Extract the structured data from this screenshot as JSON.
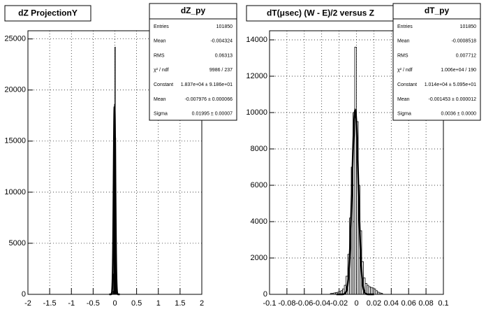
{
  "chart_data": [
    {
      "type": "histogram",
      "title": "dZ ProjectionY",
      "stats": {
        "title": "dZ_py",
        "rows": [
          {
            "label": "Entries",
            "value": "101850"
          },
          {
            "label": "Mean",
            "value": "-0.004324"
          },
          {
            "label": "RMS",
            "value": "0.06313"
          },
          {
            "label": "χ² / ndf",
            "value": "9986 / 237"
          },
          {
            "label": "Constant",
            "value": "1.837e+04 ± 9.186e+01"
          },
          {
            "label": "Mean",
            "value": "-0.007976 ± 0.000066"
          },
          {
            "label": "Sigma",
            "value": "0.01995 ± 0.00007"
          }
        ]
      },
      "fit": {
        "constant": 18370,
        "mean": -0.007976,
        "sigma": 0.01995
      },
      "bins": [
        -0.1,
        -0.09,
        -0.08,
        -0.07,
        -0.06,
        -0.05,
        -0.04,
        -0.03,
        -0.02,
        -0.01,
        0,
        0.01,
        0.02,
        0.03,
        0.04,
        0.05,
        0.06,
        0.07,
        0.08,
        0.09,
        0.1
      ],
      "counts": [
        0,
        0,
        0,
        0,
        0,
        50,
        300,
        2000,
        9000,
        18600,
        24200,
        15300,
        3000,
        500,
        60,
        0,
        0,
        0,
        0,
        0
      ],
      "xlim": [
        -2,
        2
      ],
      "ylim": [
        0,
        25800
      ],
      "xticks": [
        -2,
        -1.5,
        -1,
        -0.5,
        0,
        0.5,
        1,
        1.5,
        2
      ],
      "yticks": [
        0,
        5000,
        10000,
        15000,
        20000,
        25000
      ],
      "grid": true,
      "color": "#000000"
    },
    {
      "type": "histogram",
      "title": "dT(μsec) (W - E)/2 versus Z",
      "stats": {
        "title": "dT_py",
        "rows": [
          {
            "label": "Entries",
            "value": "101850"
          },
          {
            "label": "Mean",
            "value": "-0.0008518"
          },
          {
            "label": "RMS",
            "value": "0.007712"
          },
          {
            "label": "χ² / ndf",
            "value": "1.006e+04 / 190"
          },
          {
            "label": "Constant",
            "value": "1.014e+04 ± 5.095e+01"
          },
          {
            "label": "Mean",
            "value": "-0.001453 ± 0.000012"
          },
          {
            "label": "Sigma",
            "value": "0.0036 ± 0.0000"
          }
        ]
      },
      "fit": {
        "constant": 10140,
        "mean": -0.001453,
        "sigma": 0.0036
      },
      "bins": [
        -0.03,
        -0.028,
        -0.026,
        -0.024,
        -0.022,
        -0.02,
        -0.018,
        -0.016,
        -0.014,
        -0.012,
        -0.01,
        -0.008,
        -0.006,
        -0.004,
        -0.002,
        0,
        0.002,
        0.004,
        0.006,
        0.008,
        0.01,
        0.012,
        0.014,
        0.016,
        0.018,
        0.02,
        0.022,
        0.024,
        0.026,
        0.028,
        0.03
      ],
      "counts": [
        50,
        60,
        80,
        100,
        120,
        150,
        200,
        300,
        500,
        1000,
        2200,
        4200,
        7000,
        10000,
        13600,
        9500,
        6000,
        3500,
        1800,
        900,
        600,
        500,
        420,
        380,
        350,
        300,
        200,
        120,
        80,
        60
      ],
      "xlim": [
        -0.1,
        0.1
      ],
      "ylim": [
        0,
        14500
      ],
      "xticks": [
        -0.1,
        -0.08,
        -0.06,
        -0.04,
        -0.02,
        0,
        0.02,
        0.04,
        0.06,
        0.08,
        0.1
      ],
      "yticks": [
        0,
        2000,
        4000,
        6000,
        8000,
        10000,
        12000,
        14000
      ],
      "grid": true,
      "color": "#000000"
    }
  ]
}
